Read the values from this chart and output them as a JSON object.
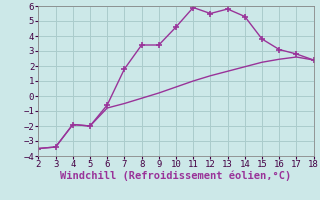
{
  "xlabel": "Windchill (Refroidissement éolien,°C)",
  "line1_x": [
    2,
    3,
    4,
    5,
    6,
    7,
    8,
    9,
    10,
    11,
    12,
    13,
    14,
    15,
    16,
    17,
    18
  ],
  "line1_y": [
    -3.5,
    -3.4,
    -1.9,
    -2.0,
    -0.6,
    1.8,
    3.4,
    3.4,
    4.6,
    5.9,
    5.5,
    5.8,
    5.3,
    3.8,
    3.1,
    2.8,
    2.4
  ],
  "line2_x": [
    2,
    3,
    4,
    5,
    6,
    7,
    8,
    9,
    10,
    11,
    12,
    13,
    14,
    15,
    16,
    17,
    18
  ],
  "line2_y": [
    -3.5,
    -3.4,
    -1.9,
    -2.0,
    -0.8,
    -0.5,
    -0.15,
    0.2,
    0.6,
    1.0,
    1.35,
    1.65,
    1.95,
    2.25,
    2.45,
    2.6,
    2.4
  ],
  "line_color": "#993399",
  "bg_color": "#cce8e8",
  "grid_color": "#aacccc",
  "xlim": [
    2,
    18
  ],
  "ylim": [
    -4,
    6
  ],
  "xticks": [
    2,
    3,
    4,
    5,
    6,
    7,
    8,
    9,
    10,
    11,
    12,
    13,
    14,
    15,
    16,
    17,
    18
  ],
  "yticks": [
    -4,
    -3,
    -2,
    -1,
    0,
    1,
    2,
    3,
    4,
    5,
    6
  ],
  "marker": "+",
  "markersize": 4,
  "linewidth": 1.0,
  "xlabel_fontsize": 7.5,
  "tick_fontsize": 6.5
}
